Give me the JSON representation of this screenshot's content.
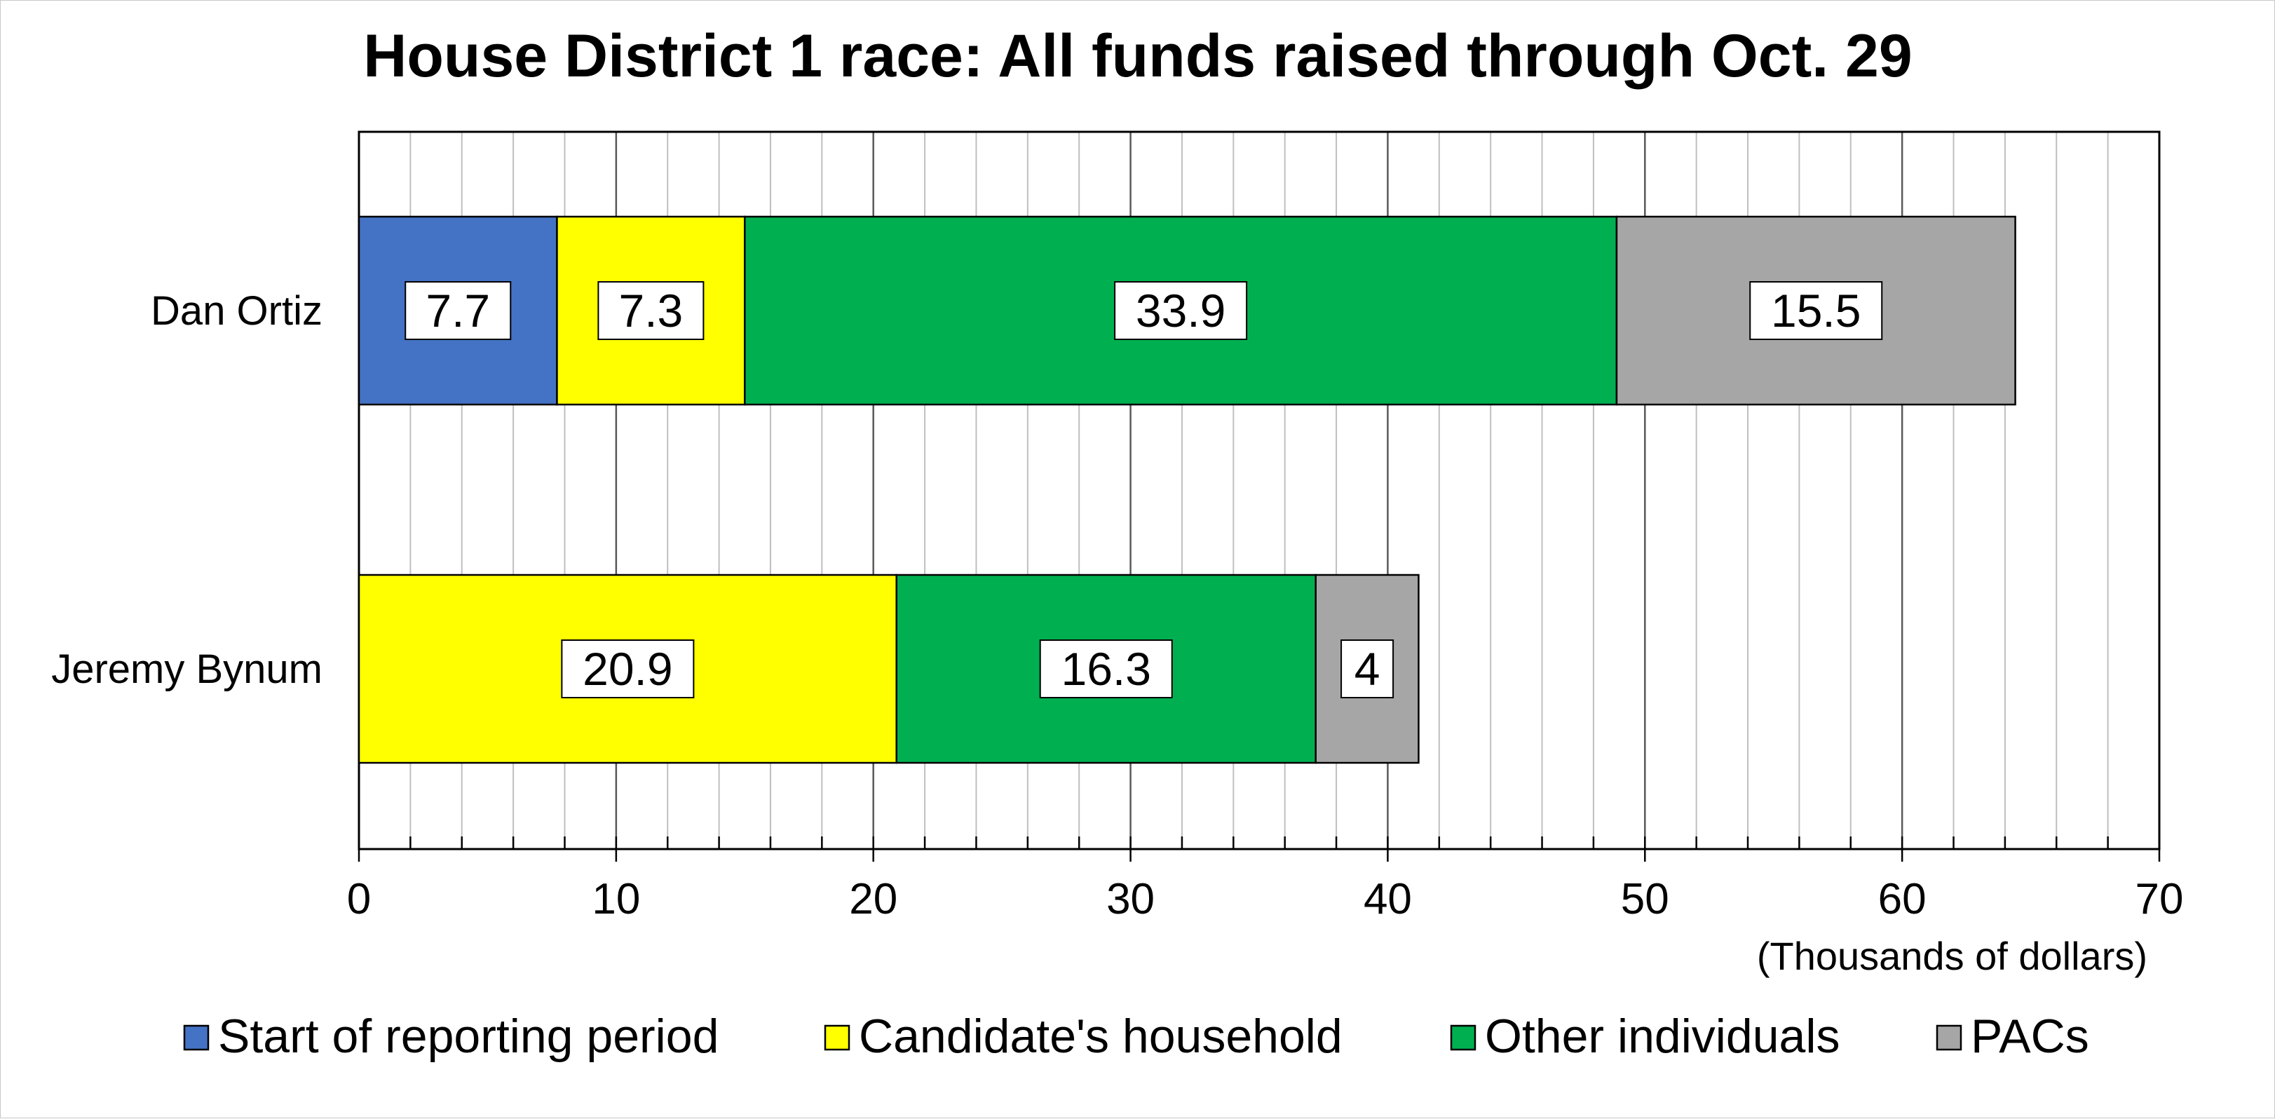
{
  "chart_data": {
    "type": "bar",
    "orientation": "horizontal",
    "stacked": true,
    "title": "House District 1 race: All funds raised through Oct. 29",
    "categories": [
      "Dan Ortiz",
      "Jeremy Bynum"
    ],
    "series": [
      {
        "name": "Start of reporting period",
        "color": "#4472c4",
        "values": [
          7.7,
          0
        ]
      },
      {
        "name": "Candidate's household",
        "color": "#ffff00",
        "values": [
          7.3,
          20.9
        ]
      },
      {
        "name": "Other individuals",
        "color": "#00b050",
        "values": [
          33.9,
          16.3
        ]
      },
      {
        "name": "PACs",
        "color": "#a6a6a6",
        "values": [
          15.5,
          4
        ]
      }
    ],
    "xlim": [
      0,
      70
    ],
    "xticks": [
      0,
      10,
      20,
      30,
      40,
      50,
      60,
      70
    ],
    "xticks_labels": [
      "0",
      "10",
      "20",
      "30",
      "40",
      "50",
      "60",
      "70"
    ],
    "minor_tick_step": 2,
    "xlabel": "(Thousands of dollars)",
    "grid": true,
    "legend_position": "bottom"
  }
}
